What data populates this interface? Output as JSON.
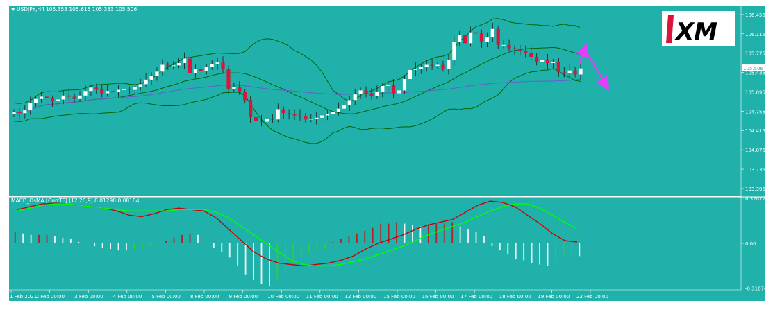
{
  "window": {
    "symbol_label": "USDJPY,H4",
    "ohlc_text": "105.353 105.615 105.353 105.506",
    "indicator_label": "MACD_OsMA [CurrTF] (12,26,9) 0.01290 0.08164",
    "logo_text": "XM",
    "current_price_tag": "105.506"
  },
  "colors": {
    "background": "#20b2aa",
    "bull_candle": "#ffffff",
    "bear_candle": "#dc143c",
    "bollinger": "#006400",
    "ma": "#6a5acd",
    "macd_line": "#cc0000",
    "signal_line": "#00ff00",
    "arrow": "#e040fb"
  },
  "chart_data": [
    {
      "type": "candlestick",
      "title": "USDJPY,H4",
      "y_ticks": [
        "106.455",
        "106.115",
        "105.775",
        "105.435",
        "105.095",
        "104.755",
        "104.415",
        "104.075",
        "103.735",
        "103.395"
      ],
      "ylim": [
        103.26,
        106.6
      ],
      "x_ticks": [
        "1 Feb 2021",
        "2 Feb 00:00",
        "3 Feb 00:00",
        "4 Feb 00:00",
        "5 Feb 00:00",
        "8 Feb 00:00",
        "9 Feb 00:00",
        "10 Feb 00:00",
        "11 Feb 00:00",
        "12 Feb 00:00",
        "15 Feb 00:00",
        "16 Feb 00:00",
        "17 Feb 00:00",
        "18 Feb 00:00",
        "19 Feb 00:00",
        "22 Feb 00:00"
      ],
      "close": [
        104.74,
        104.72,
        104.77,
        104.9,
        104.97,
        105.01,
        104.98,
        104.93,
        104.96,
        105.03,
        105.01,
        104.97,
        105.03,
        105.11,
        105.17,
        105.14,
        105.07,
        105.11,
        105.1,
        105.13,
        105.14,
        105.13,
        105.18,
        105.23,
        105.31,
        105.38,
        105.45,
        105.57,
        105.55,
        105.56,
        105.6,
        105.68,
        105.42,
        105.5,
        105.46,
        105.53,
        105.58,
        105.61,
        105.5,
        105.15,
        105.18,
        105.1,
        104.95,
        104.65,
        104.58,
        104.57,
        104.62,
        104.61,
        104.79,
        104.72,
        104.7,
        104.68,
        104.66,
        104.61,
        104.62,
        104.64,
        104.68,
        104.7,
        104.74,
        104.8,
        104.86,
        104.95,
        105.05,
        105.12,
        105.07,
        105.02,
        105.1,
        105.2,
        105.22,
        105.07,
        105.12,
        105.32,
        105.48,
        105.5,
        105.53,
        105.57,
        105.55,
        105.57,
        105.5,
        105.65,
        105.97,
        106.1,
        105.95,
        106.14,
        106.12,
        105.97,
        106.05,
        106.2,
        105.92,
        105.92,
        105.86,
        105.85,
        105.82,
        105.78,
        105.71,
        105.62,
        105.66,
        105.6,
        105.62,
        105.44,
        105.42,
        105.47,
        105.4,
        105.506
      ],
      "current_price": 105.506,
      "arrow_note": "magenta arrow pointing up then down"
    },
    {
      "type": "histogram_with_lines",
      "title": "MACD_OsMA [CurrTF] (12,26,9) 0.01290 0.08164",
      "y_ticks": [
        "0.32072",
        "0.00",
        "-0.31674"
      ],
      "ylim": [
        -0.32,
        0.32
      ],
      "series": [
        {
          "name": "MACD",
          "color": "#cc0000",
          "values": [
            0.24,
            0.26,
            0.28,
            0.285,
            0.28,
            0.27,
            0.26,
            0.25,
            0.23,
            0.2,
            0.19,
            0.21,
            0.24,
            0.25,
            0.24,
            0.23,
            0.18,
            0.1,
            0.02,
            -0.06,
            -0.11,
            -0.14,
            -0.15,
            -0.16,
            -0.15,
            -0.14,
            -0.12,
            -0.09,
            -0.04,
            0.0,
            0.03,
            0.06,
            0.1,
            0.13,
            0.15,
            0.17,
            0.22,
            0.27,
            0.3,
            0.29,
            0.26,
            0.2,
            0.14,
            0.07,
            0.02,
            0.01
          ]
        },
        {
          "name": "Signal",
          "color": "#00ff00",
          "values": [
            0.23,
            0.25,
            0.27,
            0.28,
            0.28,
            0.27,
            0.26,
            0.25,
            0.24,
            0.23,
            0.23,
            0.23,
            0.23,
            0.24,
            0.24,
            0.24,
            0.22,
            0.18,
            0.12,
            0.06,
            0.0,
            -0.06,
            -0.12,
            -0.15,
            -0.16,
            -0.16,
            -0.15,
            -0.13,
            -0.11,
            -0.08,
            -0.05,
            -0.02,
            0.02,
            0.06,
            0.09,
            0.12,
            0.15,
            0.19,
            0.23,
            0.26,
            0.28,
            0.28,
            0.25,
            0.2,
            0.15,
            0.1
          ]
        }
      ],
      "histogram": [
        0.08,
        0.07,
        0.06,
        0.06,
        0.06,
        0.05,
        0.04,
        0.03,
        0.01,
        0.0,
        -0.02,
        -0.03,
        -0.04,
        -0.05,
        -0.05,
        -0.04,
        -0.03,
        -0.02,
        -0.01,
        0.02,
        0.04,
        0.06,
        0.07,
        0.06,
        0.0,
        -0.03,
        -0.06,
        -0.1,
        -0.16,
        -0.22,
        -0.26,
        -0.29,
        -0.3,
        -0.26,
        -0.2,
        -0.14,
        -0.1,
        -0.07,
        -0.05,
        -0.04,
        0.01,
        0.03,
        0.05,
        0.07,
        0.09,
        0.11,
        0.14,
        0.14,
        0.15,
        0.14,
        0.13,
        0.12,
        0.13,
        0.14,
        0.14,
        0.15,
        0.12,
        0.1,
        0.08,
        0.05,
        -0.02,
        -0.05,
        -0.08,
        -0.11,
        -0.12,
        -0.14,
        -0.15,
        -0.16,
        -0.13,
        -0.1,
        -0.08,
        -0.09
      ]
    }
  ]
}
